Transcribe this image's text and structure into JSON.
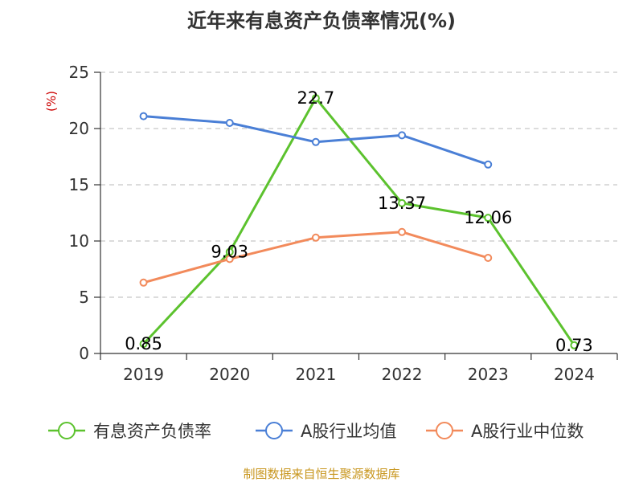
{
  "chart_data": {
    "type": "line",
    "title": "近年来有息资产负债率情况(%)",
    "unit_label": "(%)",
    "categories": [
      "2019",
      "2020",
      "2021",
      "2022",
      "2023",
      "2024"
    ],
    "ylim": [
      0,
      25
    ],
    "yticks": [
      0,
      5,
      10,
      15,
      20,
      25
    ],
    "grid": true,
    "legend_position": "bottom",
    "series": [
      {
        "name": "有息资产负债率",
        "color": "#5cc22e",
        "values": [
          0.85,
          9.03,
          22.7,
          13.37,
          12.06,
          0.73
        ],
        "labels": [
          "0.85",
          "9.03",
          "22.7",
          "13.37",
          "12.06",
          "0.73"
        ]
      },
      {
        "name": "A股行业均值",
        "color": "#4a7fd6",
        "values": [
          21.1,
          20.5,
          18.8,
          19.4,
          16.8,
          null
        ]
      },
      {
        "name": "A股行业中位数",
        "color": "#f28a5b",
        "values": [
          6.3,
          8.4,
          10.3,
          10.8,
          8.5,
          null
        ]
      }
    ],
    "source": "制图数据来自恒生聚源数据库",
    "unit_color": "#cc0000",
    "source_color": "#c8961e"
  }
}
